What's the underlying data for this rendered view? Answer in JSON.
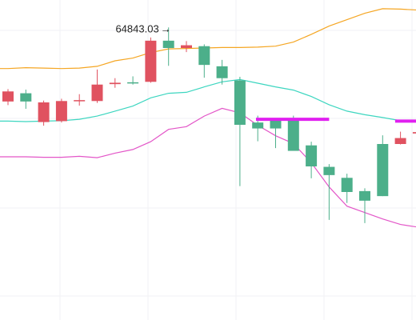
{
  "chart_data": {
    "type": "candlestick",
    "title": "",
    "xlabel": "",
    "ylabel": "",
    "ylim": [
      64205,
      64905
    ],
    "grid": true,
    "colors": {
      "up": "#4caf8a",
      "down": "#e05260",
      "upper_band": "#f5a623",
      "middle_band": "#3dd6c0",
      "lower_band": "#e356c8",
      "marker": "#e020f0"
    },
    "annotation": {
      "label": "64843.03",
      "arrow": "→",
      "price": 64843.03,
      "candle_index": 9
    },
    "candles": [
      {
        "o": 64705,
        "h": 64710,
        "l": 64675,
        "c": 64683
      },
      {
        "o": 64683,
        "h": 64709,
        "l": 64667,
        "c": 64701
      },
      {
        "o": 64681,
        "h": 64685,
        "l": 64630,
        "c": 64638
      },
      {
        "o": 64684,
        "h": 64689,
        "l": 64637,
        "c": 64640
      },
      {
        "o": 64686,
        "h": 64699,
        "l": 64674,
        "c": 64684
      },
      {
        "o": 64720,
        "h": 64753,
        "l": 64680,
        "c": 64684
      },
      {
        "o": 64724,
        "h": 64734,
        "l": 64713,
        "c": 64721
      },
      {
        "o": 64723,
        "h": 64738,
        "l": 64720,
        "c": 64725
      },
      {
        "o": 64816,
        "h": 64823,
        "l": 64724,
        "c": 64726
      },
      {
        "o": 64800,
        "h": 64845,
        "l": 64761,
        "c": 64816
      },
      {
        "o": 64806,
        "h": 64815,
        "l": 64791,
        "c": 64800
      },
      {
        "o": 64763,
        "h": 64808,
        "l": 64735,
        "c": 64804
      },
      {
        "o": 64734,
        "h": 64774,
        "l": 64720,
        "c": 64760
      },
      {
        "o": 64632,
        "h": 64737,
        "l": 64498,
        "c": 64729
      },
      {
        "o": 64624,
        "h": 64652,
        "l": 64596,
        "c": 64637
      },
      {
        "o": 64624,
        "h": 64644,
        "l": 64581,
        "c": 64645
      },
      {
        "o": 64575,
        "h": 64652,
        "l": 64578,
        "c": 64645
      },
      {
        "o": 64541,
        "h": 64595,
        "l": 64515,
        "c": 64587
      },
      {
        "o": 64522,
        "h": 64546,
        "l": 64424,
        "c": 64540
      },
      {
        "o": 64485,
        "h": 64525,
        "l": 64461,
        "c": 64516
      },
      {
        "o": 64466,
        "h": 64493,
        "l": 64417,
        "c": 64487
      },
      {
        "o": 64476,
        "h": 64609,
        "l": 64476,
        "c": 64590
      },
      {
        "o": 64603,
        "h": 64617,
        "l": 64589,
        "c": 64590
      },
      {
        "o": 64616,
        "h": 64623,
        "l": 64610,
        "c": 64613
      }
    ],
    "bands": {
      "upper": [
        64755,
        64757,
        64756,
        64755,
        64756,
        64760,
        64772,
        64778,
        64790,
        64798,
        64799,
        64800,
        64801,
        64801,
        64802,
        64804,
        64813,
        64830,
        64848,
        64862,
        64876,
        64886,
        64885,
        64883
      ],
      "middle": [
        64640,
        64639,
        64640,
        64641,
        64644,
        64651,
        64662,
        64673,
        64691,
        64701,
        64703,
        64715,
        64726,
        64731,
        64723,
        64715,
        64708,
        64694,
        64676,
        64662,
        64654,
        64648,
        64641,
        64641
      ],
      "lower": [
        64562,
        64562,
        64561,
        64561,
        64563,
        64560,
        64570,
        64578,
        64595,
        64622,
        64628,
        64651,
        64668,
        64658,
        64631,
        64608,
        64591,
        64549,
        64496,
        64454,
        64440,
        64426,
        64414,
        64408
      ]
    },
    "markers": [
      {
        "from_index": 13.9,
        "to_index": 18.0,
        "price": 64644
      },
      {
        "from_index": 21.7,
        "to_index": 24.0,
        "price": 64640
      }
    ]
  }
}
